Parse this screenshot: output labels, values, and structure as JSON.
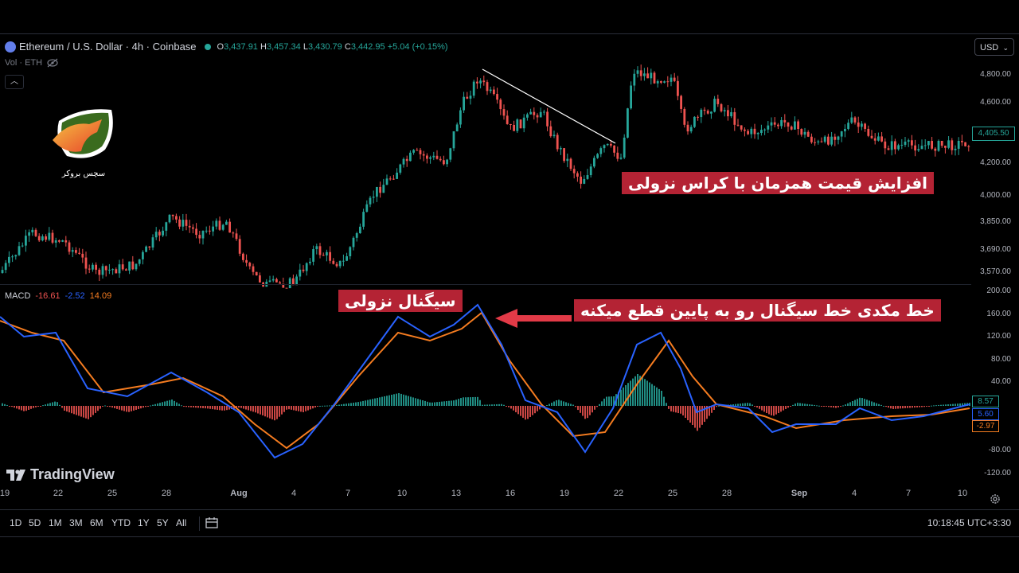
{
  "legend": {
    "symbol": "Ethereum / U.S. Dollar · 4h · Coinbase",
    "open_label": "O",
    "open": "3,437.91",
    "high_label": "H",
    "high": "3,457.34",
    "low_label": "L",
    "low": "3,430.79",
    "close_label": "C",
    "close": "3,442.95",
    "change": "+5.04 (+0.15%)",
    "vol": "Vol · ETH"
  },
  "currency": "USD",
  "price_axis": [
    "4,800.00",
    "4,600.00",
    "4,400.00",
    "4,200.00",
    "4,000.00",
    "3,850.00",
    "3,690.00",
    "3,570.00"
  ],
  "current_price": "4,405.50",
  "macd": {
    "label": "MACD",
    "hist": "-16.61",
    "macd": "-2.52",
    "signal": "14.09",
    "axis": [
      "200.00",
      "160.00",
      "120.00",
      "80.00",
      "40.00",
      "-40.00",
      "-80.00",
      "-120.00"
    ],
    "tag_hist": "8.57",
    "tag_macd": "5.60",
    "tag_signal": "-2.97"
  },
  "logo_caption": "سچس بروکر",
  "annotations": {
    "price": "افزایش قیمت همزمان با کراس نزولی",
    "signal": "سیگنال نزولی",
    "cross": "خط مکدی خط سیگنال رو به پایین قطع میکنه"
  },
  "x_axis": [
    "19",
    "22",
    "25",
    "28",
    "Aug",
    "4",
    "7",
    "10",
    "13",
    "16",
    "19",
    "22",
    "25",
    "28",
    "Sep",
    "4",
    "7",
    "10"
  ],
  "timeframes": [
    "1D",
    "5D",
    "1M",
    "3M",
    "6M",
    "YTD",
    "1Y",
    "5Y",
    "All"
  ],
  "clock": "10:18:45 UTC+3:30",
  "watermark": "TradingView",
  "colors": {
    "up": "#26a69a",
    "down": "#ef5350",
    "macd": "#2962ff",
    "signal": "#f57c20",
    "annotation": "#b42334"
  }
}
